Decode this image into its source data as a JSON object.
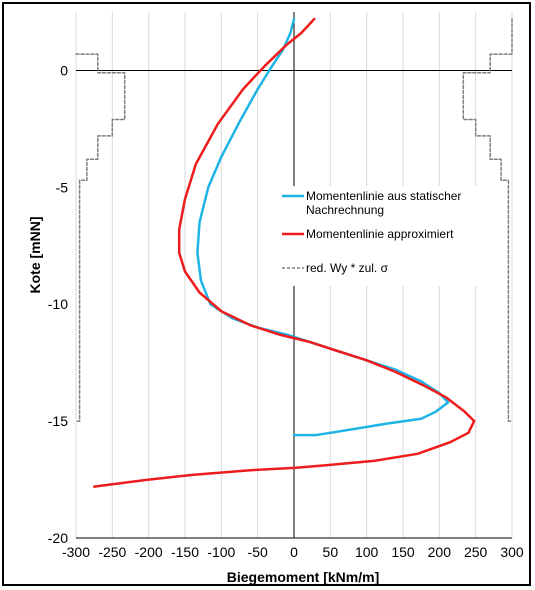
{
  "chart_data": {
    "type": "line",
    "xlabel": "Biegemoment [kNm/m]",
    "ylabel": "Kote [mNN]",
    "xlim": [
      -300,
      300
    ],
    "ylim": [
      -20,
      2.5
    ],
    "xticks": [
      -300,
      -250,
      -200,
      -150,
      -100,
      -50,
      0,
      50,
      100,
      150,
      200,
      250,
      300
    ],
    "yticks": [
      0,
      -5,
      -10,
      -15,
      -20
    ],
    "grid": "vertical",
    "legend_position": "center-right",
    "series": [
      {
        "name": "Momentenlinie aus statischer Nachrechnung",
        "color": "#1fb4e6",
        "style": "solid",
        "points": [
          [
            0,
            2.2
          ],
          [
            -5,
            1.6
          ],
          [
            -15,
            0.9
          ],
          [
            -30,
            0.2
          ],
          [
            -50,
            -0.8
          ],
          [
            -75,
            -2.2
          ],
          [
            -100,
            -3.7
          ],
          [
            -118,
            -5.0
          ],
          [
            -130,
            -6.5
          ],
          [
            -133,
            -7.8
          ],
          [
            -128,
            -9.0
          ],
          [
            -115,
            -10.0
          ],
          [
            -85,
            -10.6
          ],
          [
            -50,
            -11.0
          ],
          [
            -10,
            -11.3
          ],
          [
            20,
            -11.6
          ],
          [
            60,
            -12.0
          ],
          [
            100,
            -12.4
          ],
          [
            140,
            -12.8
          ],
          [
            175,
            -13.3
          ],
          [
            200,
            -13.8
          ],
          [
            212,
            -14.2
          ],
          [
            195,
            -14.6
          ],
          [
            175,
            -14.9
          ],
          [
            130,
            -15.1
          ],
          [
            90,
            -15.3
          ],
          [
            50,
            -15.5
          ],
          [
            30,
            -15.6
          ],
          [
            5,
            -15.6
          ],
          [
            0,
            -15.6
          ]
        ]
      },
      {
        "name": "Momentenlinie approximiert",
        "color": "#ee1c1c",
        "style": "solid",
        "points": [
          [
            28,
            2.2
          ],
          [
            10,
            1.6
          ],
          [
            -10,
            1.1
          ],
          [
            -40,
            0.2
          ],
          [
            -70,
            -0.8
          ],
          [
            -105,
            -2.3
          ],
          [
            -135,
            -4.0
          ],
          [
            -150,
            -5.5
          ],
          [
            -158,
            -6.8
          ],
          [
            -158,
            -7.8
          ],
          [
            -150,
            -8.6
          ],
          [
            -130,
            -9.5
          ],
          [
            -100,
            -10.3
          ],
          [
            -60,
            -10.9
          ],
          [
            -20,
            -11.3
          ],
          [
            20,
            -11.6
          ],
          [
            60,
            -12.0
          ],
          [
            100,
            -12.4
          ],
          [
            140,
            -12.9
          ],
          [
            180,
            -13.5
          ],
          [
            210,
            -14.0
          ],
          [
            235,
            -14.6
          ],
          [
            248,
            -15.0
          ],
          [
            240,
            -15.5
          ],
          [
            215,
            -15.9
          ],
          [
            170,
            -16.4
          ],
          [
            110,
            -16.7
          ],
          [
            40,
            -16.9
          ],
          [
            0,
            -17.0
          ],
          [
            -60,
            -17.1
          ],
          [
            -140,
            -17.3
          ],
          [
            -200,
            -17.5
          ],
          [
            -250,
            -17.7
          ],
          [
            -275,
            -17.8
          ]
        ]
      },
      {
        "name": "red. Wy * zul. σ",
        "color": "#7f7f7f",
        "style": "dashed",
        "points": [
          [
            -300,
            0.7
          ],
          [
            -270,
            0.7
          ],
          [
            -270,
            -0.1
          ],
          [
            -233,
            -0.1
          ],
          [
            -233,
            -2.1
          ],
          [
            -250,
            -2.1
          ],
          [
            -250,
            -2.8
          ],
          [
            -270,
            -2.8
          ],
          [
            -270,
            -3.8
          ],
          [
            -285,
            -3.8
          ],
          [
            -285,
            -4.7
          ],
          [
            -295,
            -4.7
          ],
          [
            -295,
            -15.0
          ],
          [
            -300,
            -15.0
          ]
        ]
      },
      {
        "name": "",
        "color": "#7f7f7f",
        "style": "dashed",
        "points": [
          [
            300,
            2.2
          ],
          [
            300,
            0.7
          ],
          [
            270,
            0.7
          ],
          [
            270,
            -0.1
          ],
          [
            233,
            -0.1
          ],
          [
            233,
            -2.1
          ],
          [
            250,
            -2.1
          ],
          [
            250,
            -2.8
          ],
          [
            270,
            -2.8
          ],
          [
            270,
            -3.8
          ],
          [
            285,
            -3.8
          ],
          [
            285,
            -4.7
          ],
          [
            295,
            -4.7
          ],
          [
            295,
            -15.0
          ],
          [
            300,
            -15.0
          ]
        ]
      }
    ]
  }
}
